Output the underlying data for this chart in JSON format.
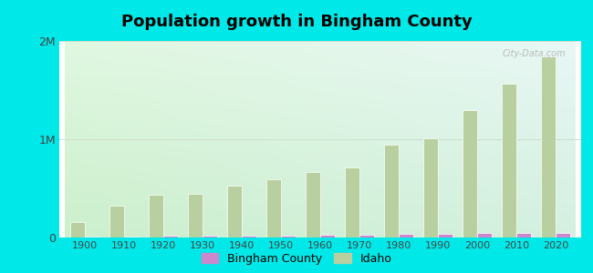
{
  "title": "Population growth in Bingham County",
  "years": [
    1900,
    1910,
    1920,
    1930,
    1940,
    1950,
    1960,
    1970,
    1980,
    1990,
    2000,
    2010,
    2020
  ],
  "idaho": [
    161772,
    325594,
    431866,
    445032,
    524873,
    588637,
    667191,
    712567,
    943935,
    1006749,
    1293953,
    1567582,
    1839106
  ],
  "bingham": [
    6318,
    9387,
    16196,
    15951,
    19000,
    22541,
    27353,
    29286,
    36489,
    37583,
    41735,
    45607,
    46811
  ],
  "idaho_color": "#b8cfa0",
  "bingham_color": "#cc88cc",
  "outer_bg": "#00e8e8",
  "bar_width": 0.38,
  "ylim": [
    0,
    2000000
  ],
  "yticks": [
    0,
    1000000,
    2000000
  ],
  "ytick_labels": [
    "0",
    "1M",
    "2M"
  ],
  "watermark": "City-Data.com",
  "grid_color": "#ccddcc",
  "bg_top_left": "#d8eed8",
  "bg_bottom_right": "#c8eee8"
}
